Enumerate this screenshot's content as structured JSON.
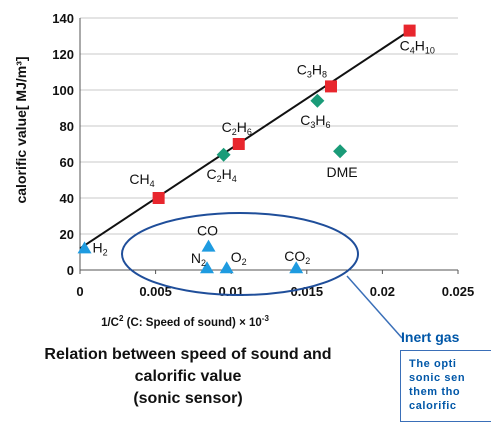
{
  "chart_data": {
    "type": "scatter",
    "ylabel": "calorific value[ MJ/m³]",
    "xlabel_parts": {
      "a": "1/C",
      "sup": "2",
      "b": " (C: Speed of sound) × 10",
      "sup2": "-3"
    },
    "xlim": [
      0,
      0.025
    ],
    "ylim": [
      0,
      140
    ],
    "x_ticks": [
      "0",
      "0.005",
      "0.01",
      "0.015",
      "0.02",
      "0.025"
    ],
    "y_ticks": [
      "0",
      "20",
      "40",
      "60",
      "80",
      "100",
      "120",
      "140"
    ],
    "grid": "horizontal",
    "trend_line": {
      "x": [
        0,
        0.0218
      ],
      "y": [
        12,
        133
      ]
    },
    "series": [
      {
        "marker": "square",
        "color": "#e8262d",
        "points": [
          {
            "label": "CH4",
            "x": 0.0052,
            "y": 40
          },
          {
            "label": "C2H6",
            "x": 0.0105,
            "y": 70
          },
          {
            "label": "C3H8",
            "x": 0.0166,
            "y": 102
          },
          {
            "label": "C4H10",
            "x": 0.0218,
            "y": 133
          }
        ]
      },
      {
        "marker": "diamond",
        "color": "#1a9b78",
        "points": [
          {
            "label": "C2H4",
            "x": 0.0095,
            "y": 64
          },
          {
            "label": "C3H6",
            "x": 0.0157,
            "y": 94
          },
          {
            "label": "DME",
            "x": 0.0172,
            "y": 66
          }
        ]
      },
      {
        "marker": "triangle",
        "color": "#1e9be0",
        "points": [
          {
            "label": "H2",
            "x": 0.0003,
            "y": 12
          },
          {
            "label": "CO",
            "x": 0.0085,
            "y": 13
          },
          {
            "label": "N2",
            "x": 0.0084,
            "y": 1
          },
          {
            "label": "O2",
            "x": 0.0097,
            "y": 1
          },
          {
            "label": "CO2",
            "x": 0.0143,
            "y": 1
          }
        ]
      }
    ]
  },
  "caption": {
    "line1": "Relation between speed of sound and",
    "line2": "calorific value",
    "line3": "(sonic sensor)"
  },
  "inert_gas": {
    "title": "Inert gas",
    "text_line1": "The opti",
    "text_line2": "sonic sen",
    "text_line3": "them tho",
    "text_line4": "calorific"
  },
  "colors": {
    "ellipse": "#1f4e9a",
    "callout": "#3a6fb8",
    "accent_text": "#0057a8"
  }
}
